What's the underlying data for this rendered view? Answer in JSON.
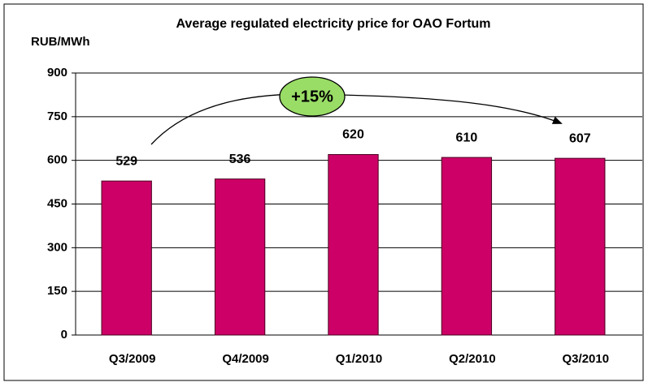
{
  "chart_data": {
    "type": "bar",
    "title": "Average regulated electricity price for OAO Fortum",
    "y_label": "RUB/MWh",
    "annotation": "+15%",
    "categories": [
      "Q3/2009",
      "Q4/2009",
      "Q1/2010",
      "Q2/2010",
      "Q3/2010"
    ],
    "values": [
      529,
      536,
      620,
      610,
      607
    ],
    "color": "#cc0066",
    "ylim": [
      0,
      900
    ],
    "yticks": [
      0,
      150,
      300,
      450,
      600,
      750,
      900
    ],
    "grid": true
  }
}
